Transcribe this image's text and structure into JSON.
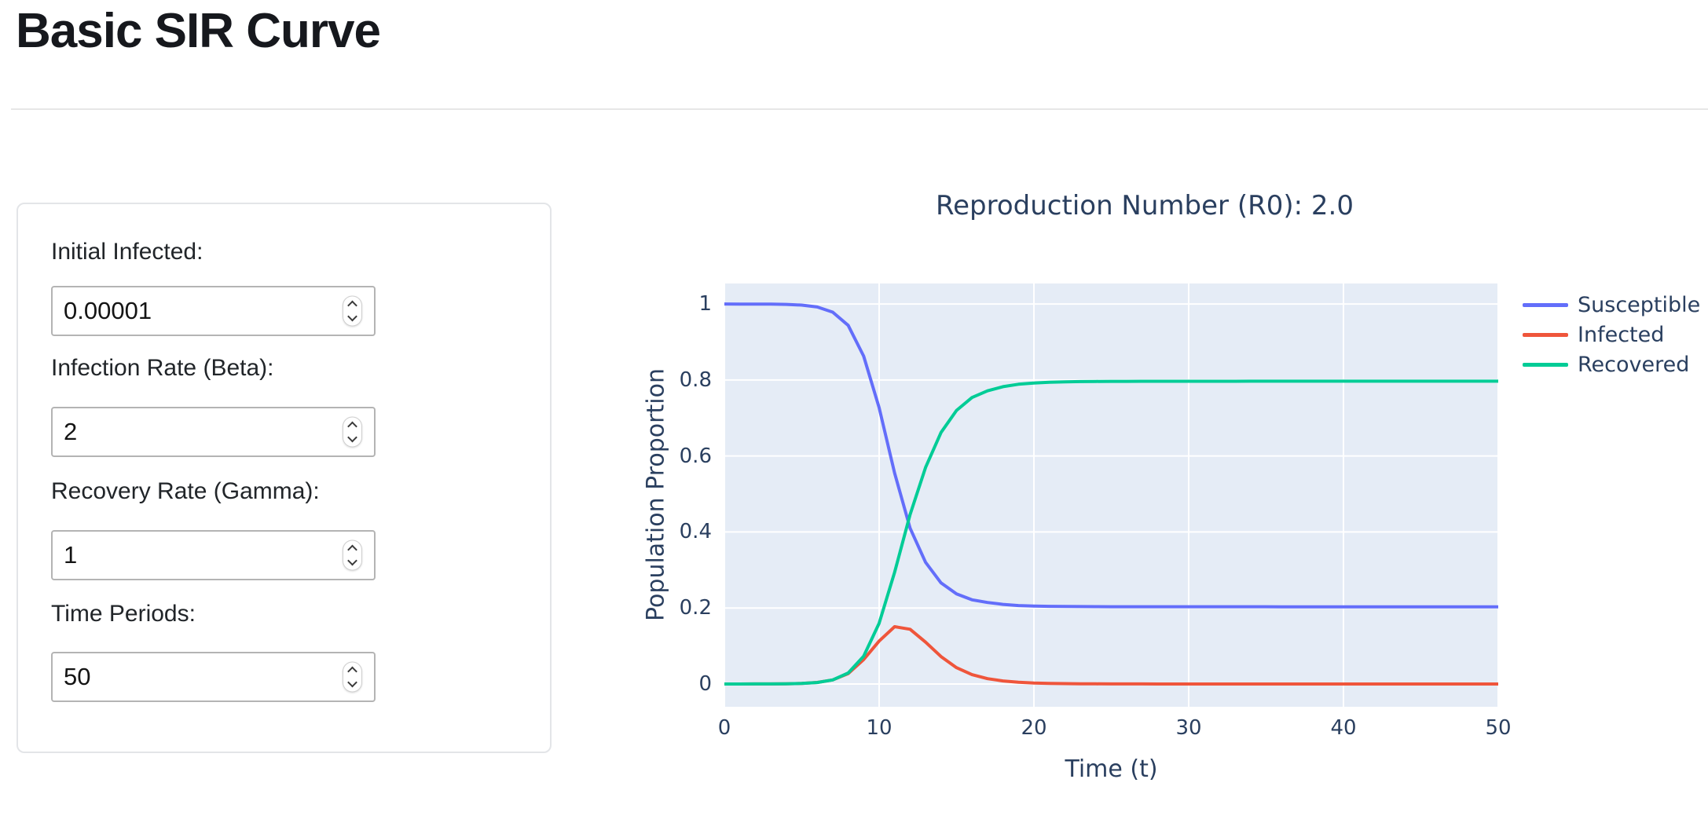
{
  "page": {
    "title": "Basic SIR Curve"
  },
  "form": {
    "fields": [
      {
        "label": "Initial Infected:",
        "value": "0.00001"
      },
      {
        "label": "Infection Rate (Beta):",
        "value": "2"
      },
      {
        "label": "Recovery Rate (Gamma):",
        "value": "1"
      },
      {
        "label": "Time Periods:",
        "value": "50"
      }
    ]
  },
  "chart_data": {
    "type": "line",
    "title": "Reproduction Number (R0): 2.0",
    "xlabel": "Time (t)",
    "ylabel": "Population Proportion",
    "xlim": [
      0,
      50
    ],
    "ylim": [
      -0.06,
      1.054
    ],
    "xticks": [
      0,
      10,
      20,
      30,
      40,
      50
    ],
    "yticks": [
      0,
      0.2,
      0.4,
      0.6,
      0.8,
      1
    ],
    "grid": true,
    "legend_position": "right",
    "plot_bg_color": "#e5ecf6",
    "grid_color": "#ffffff",
    "text_color": "#2a3f5f",
    "x": [
      0,
      1,
      2,
      3,
      4,
      5,
      6,
      7,
      8,
      9,
      10,
      11,
      12,
      13,
      14,
      15,
      16,
      17,
      18,
      19,
      20,
      21,
      22,
      23,
      24,
      25,
      26,
      27,
      28,
      29,
      30,
      31,
      32,
      33,
      34,
      35,
      36,
      37,
      38,
      39,
      40,
      41,
      42,
      43,
      44,
      45,
      46,
      47,
      48,
      49,
      50
    ],
    "series": [
      {
        "name": "Susceptible",
        "color": "#636efa",
        "values": [
          1.0,
          0.99995,
          0.99985,
          0.9996,
          0.99893,
          0.9971,
          0.99216,
          0.97856,
          0.9438,
          0.8628,
          0.727,
          0.555,
          0.41,
          0.32,
          0.266,
          0.237,
          0.2215,
          0.2145,
          0.2095,
          0.2065,
          0.2052,
          0.2044,
          0.204,
          0.2037,
          0.2035,
          0.2034,
          0.2033,
          0.20328,
          0.20326,
          0.20325,
          0.20324,
          0.20323,
          0.20322,
          0.20322,
          0.20321,
          0.20321,
          0.2032,
          0.2032,
          0.2032,
          0.2032,
          0.2032,
          0.2032,
          0.2032,
          0.2032,
          0.2032,
          0.2032,
          0.2032,
          0.2032,
          0.2032,
          0.2032,
          0.2032
        ]
      },
      {
        "name": "Infected",
        "color": "#ef553b",
        "values": [
          1e-05,
          3e-05,
          7e-05,
          0.0002,
          0.00054,
          0.00147,
          0.00398,
          0.01068,
          0.02729,
          0.06415,
          0.113,
          0.1509,
          0.144,
          0.11,
          0.072,
          0.043,
          0.0246,
          0.014,
          0.008,
          0.0047,
          0.0027,
          0.0016,
          0.0009,
          0.0005,
          0.0003,
          0.0002,
          0.00012,
          7e-05,
          4e-05,
          2e-05,
          1e-05,
          1e-05,
          0,
          0,
          0,
          0,
          0,
          0,
          0,
          0,
          0,
          0,
          0,
          0,
          0,
          0,
          0,
          0,
          0,
          0,
          0
        ]
      },
      {
        "name": "Recovered",
        "color": "#00cc96",
        "values": [
          0.0,
          2e-05,
          8e-05,
          0.0002,
          0.00053,
          0.00143,
          0.00386,
          0.01076,
          0.02891,
          0.07305,
          0.16,
          0.2941,
          0.446,
          0.57,
          0.662,
          0.72,
          0.7539,
          0.7715,
          0.7825,
          0.7888,
          0.7921,
          0.794,
          0.7951,
          0.7958,
          0.7962,
          0.7964,
          0.79658,
          0.79665,
          0.7967,
          0.79673,
          0.79675,
          0.79676,
          0.79678,
          0.79678,
          0.79679,
          0.79679,
          0.7968,
          0.7968,
          0.7968,
          0.7968,
          0.7968,
          0.7968,
          0.7968,
          0.7968,
          0.7968,
          0.7968,
          0.7968,
          0.7968,
          0.7968,
          0.7968,
          0.7968
        ]
      }
    ]
  }
}
